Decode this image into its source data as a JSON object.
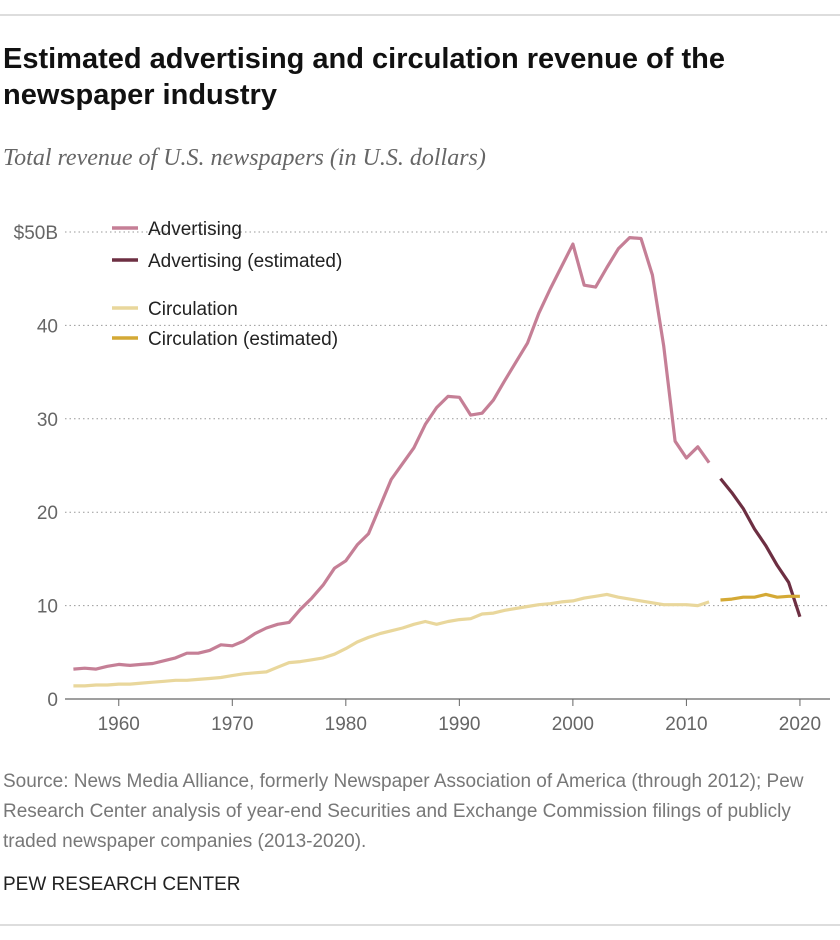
{
  "chart_data": {
    "type": "line",
    "title": "Estimated advertising and circulation revenue of the newspaper industry",
    "subtitle": "Total revenue of U.S. newspapers (in U.S. dollars)",
    "source": "Source: News Media Alliance, formerly Newspaper Association of America (through 2012); Pew Research Center analysis of year-end Securities and Exchange Commission filings of publicly traded newspaper companies (2013-2020).",
    "credit": "PEW RESEARCH CENTER",
    "xlim": [
      1955,
      2023
    ],
    "xticks": [
      1960,
      1970,
      1980,
      1990,
      2000,
      2010,
      2020
    ],
    "ylim": [
      0,
      50
    ],
    "yticks": [
      0,
      10,
      20,
      30,
      40,
      {
        "value": 50,
        "label": "$50B"
      }
    ],
    "grid": true,
    "series": [
      {
        "name": "Advertising",
        "color": "#c57f96",
        "x": [
          1956,
          1957,
          1958,
          1959,
          1960,
          1961,
          1962,
          1963,
          1964,
          1965,
          1966,
          1967,
          1968,
          1969,
          1970,
          1971,
          1972,
          1973,
          1974,
          1975,
          1976,
          1977,
          1978,
          1979,
          1980,
          1981,
          1982,
          1983,
          1984,
          1985,
          1986,
          1987,
          1988,
          1989,
          1990,
          1991,
          1992,
          1993,
          1994,
          1995,
          1996,
          1997,
          1998,
          1999,
          2000,
          2001,
          2002,
          2003,
          2004,
          2005,
          2006,
          2007,
          2008,
          2009,
          2010,
          2011,
          2012
        ],
        "values": [
          3.2,
          3.3,
          3.2,
          3.5,
          3.7,
          3.6,
          3.7,
          3.8,
          4.1,
          4.4,
          4.9,
          4.9,
          5.2,
          5.8,
          5.7,
          6.2,
          7.0,
          7.6,
          8.0,
          8.2,
          9.6,
          10.8,
          12.2,
          14.0,
          14.8,
          16.5,
          17.7,
          20.6,
          23.5,
          25.2,
          26.9,
          29.4,
          31.2,
          32.4,
          32.3,
          30.4,
          30.6,
          32.0,
          34.1,
          36.1,
          38.1,
          41.3,
          43.9,
          46.3,
          48.7,
          44.3,
          44.1,
          46.2,
          48.2,
          49.4,
          49.3,
          45.4,
          37.8,
          27.6,
          25.8,
          27.0,
          25.3
        ]
      },
      {
        "name": "Advertising (estimated)",
        "color": "#6d2f42",
        "x": [
          2013,
          2014,
          2015,
          2016,
          2017,
          2018,
          2019,
          2020
        ],
        "values": [
          23.6,
          22.1,
          20.4,
          18.2,
          16.4,
          14.3,
          12.5,
          8.8
        ]
      },
      {
        "name": "Circulation",
        "color": "#e9d79c",
        "x": [
          1956,
          1957,
          1958,
          1959,
          1960,
          1961,
          1962,
          1963,
          1964,
          1965,
          1966,
          1967,
          1968,
          1969,
          1970,
          1971,
          1972,
          1973,
          1974,
          1975,
          1976,
          1977,
          1978,
          1979,
          1980,
          1981,
          1982,
          1983,
          1984,
          1985,
          1986,
          1987,
          1988,
          1989,
          1990,
          1991,
          1992,
          1993,
          1994,
          1995,
          1996,
          1997,
          1998,
          1999,
          2000,
          2001,
          2002,
          2003,
          2004,
          2005,
          2006,
          2007,
          2008,
          2009,
          2010,
          2011,
          2012
        ],
        "values": [
          1.4,
          1.4,
          1.5,
          1.5,
          1.6,
          1.6,
          1.7,
          1.8,
          1.9,
          2.0,
          2.0,
          2.1,
          2.2,
          2.3,
          2.5,
          2.7,
          2.8,
          2.9,
          3.4,
          3.9,
          4.0,
          4.2,
          4.4,
          4.8,
          5.4,
          6.1,
          6.6,
          7.0,
          7.3,
          7.6,
          8.0,
          8.3,
          8.0,
          8.3,
          8.5,
          8.6,
          9.1,
          9.2,
          9.5,
          9.7,
          9.9,
          10.1,
          10.2,
          10.4,
          10.5,
          10.8,
          11.0,
          11.2,
          10.9,
          10.7,
          10.5,
          10.3,
          10.1,
          10.1,
          10.1,
          10.0,
          10.4
        ]
      },
      {
        "name": "Circulation (estimated)",
        "color": "#d4a935",
        "x": [
          2013,
          2014,
          2015,
          2016,
          2017,
          2018,
          2019,
          2020
        ],
        "values": [
          10.6,
          10.7,
          10.9,
          10.9,
          11.2,
          10.9,
          11.0,
          11.0
        ]
      }
    ]
  }
}
